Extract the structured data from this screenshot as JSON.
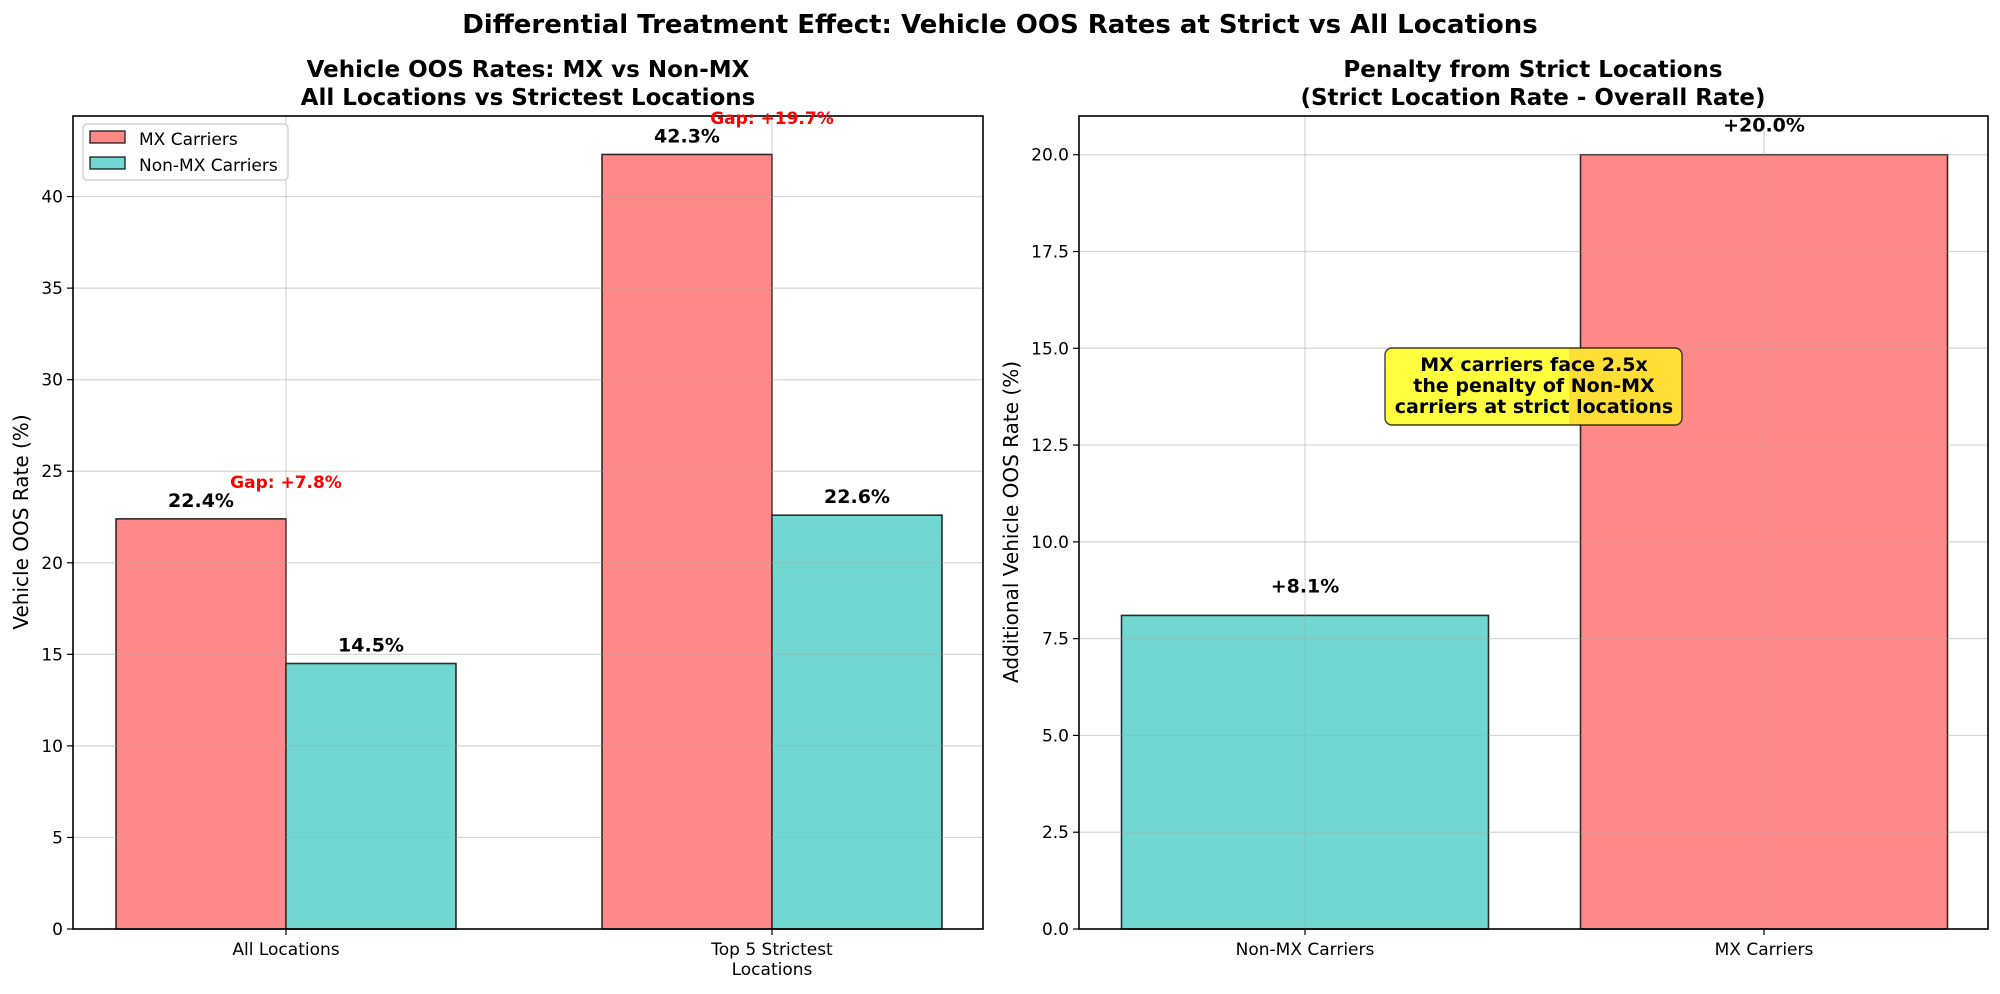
{
  "suptitle": "Differential Treatment Effect: Vehicle OOS Rates at Strict vs All Locations",
  "colors": {
    "mx": "#ff6b6b",
    "non_mx": "#4ecdc4",
    "gap_text": "#ff0000",
    "annotation_fill": "#ffff00"
  },
  "chart_data": [
    {
      "type": "bar",
      "title": "Vehicle OOS Rates: MX vs Non-MX\nAll Locations vs Strictest Locations",
      "title_lines": [
        "Vehicle OOS Rates: MX vs Non-MX",
        "All Locations vs Strictest Locations"
      ],
      "xlabel": "",
      "ylabel": "Vehicle OOS Rate (%)",
      "ylim": [
        0,
        44.4
      ],
      "yticks": [
        0,
        5,
        10,
        15,
        20,
        25,
        30,
        35,
        40
      ],
      "ytick_labels": [
        "0",
        "5",
        "10",
        "15",
        "20",
        "25",
        "30",
        "35",
        "40"
      ],
      "grid": true,
      "legend_position": "top-left",
      "categories": [
        "All Locations",
        "Top 5 Strictest Locations"
      ],
      "category_label_lines": [
        [
          "All Locations"
        ],
        [
          "Top 5 Strictest",
          "Locations"
        ]
      ],
      "series": [
        {
          "name": "MX Carriers",
          "color_key": "mx",
          "values": [
            22.4,
            42.3
          ],
          "labels": [
            "22.4%",
            "42.3%"
          ]
        },
        {
          "name": "Non-MX Carriers",
          "color_key": "non_mx",
          "values": [
            14.5,
            22.6
          ],
          "labels": [
            "14.5%",
            "22.6%"
          ]
        }
      ],
      "annotations": [
        {
          "text": "Gap: +7.8%",
          "category_index": 0,
          "y": 24.4
        },
        {
          "text": "Gap: +19.7%",
          "category_index": 1,
          "y": 44.3
        }
      ]
    },
    {
      "type": "bar",
      "title": "Penalty from Strict Locations\n(Strict Location Rate - Overall Rate)",
      "title_lines": [
        "Penalty from Strict Locations",
        "(Strict Location Rate - Overall Rate)"
      ],
      "xlabel": "",
      "ylabel": "Additional Vehicle OOS Rate (%)",
      "ylim": [
        0,
        21.0
      ],
      "yticks": [
        0,
        2.5,
        5,
        7.5,
        10,
        12.5,
        15,
        17.5,
        20
      ],
      "ytick_labels": [
        "0.0",
        "2.5",
        "5.0",
        "7.5",
        "10.0",
        "12.5",
        "15.0",
        "17.5",
        "20.0"
      ],
      "grid": true,
      "categories": [
        "Non-MX Carriers",
        "MX Carriers"
      ],
      "values": [
        8.1,
        20.0
      ],
      "color_keys": [
        "non_mx",
        "mx"
      ],
      "labels": [
        "+8.1%",
        "+20.0%"
      ],
      "annotation_box": {
        "lines": [
          "MX carriers face 2.5x",
          "the penalty of Non-MX",
          "carriers at strict locations"
        ],
        "x_between_categories": 0.5,
        "y": 14.8
      }
    }
  ]
}
